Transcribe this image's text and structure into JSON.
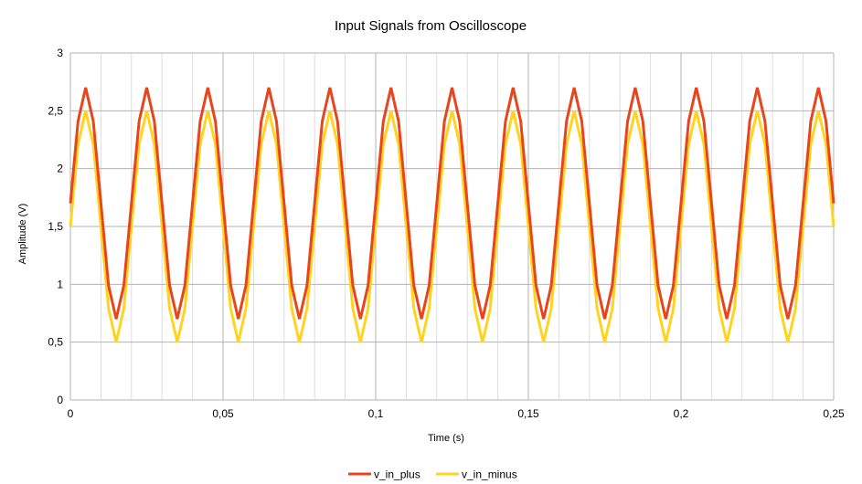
{
  "chart_data": {
    "type": "line",
    "title": "Input Signals from Oscilloscope",
    "xlabel": "Time (s)",
    "ylabel": "Amplitude (V)",
    "xlim": [
      0,
      0.25
    ],
    "ylim": [
      0,
      3
    ],
    "x_ticks": [
      0,
      0.05,
      0.1,
      0.15,
      0.2,
      0.25
    ],
    "x_tick_labels": [
      "0",
      "0,05",
      "0,1",
      "0,15",
      "0,2",
      "0,25"
    ],
    "y_ticks": [
      0,
      0.5,
      1,
      1.5,
      2,
      2.5,
      3
    ],
    "y_tick_labels": [
      "0",
      "0,5",
      "1",
      "1,5",
      "2",
      "2,5",
      "3"
    ],
    "grid": true,
    "legend_position": "bottom",
    "x": [
      0,
      0.0025,
      0.005,
      0.0075,
      0.01,
      0.0125,
      0.015,
      0.0175,
      0.02,
      0.0225,
      0.025,
      0.0275,
      0.03,
      0.0325,
      0.035,
      0.0375,
      0.04,
      0.0425,
      0.045,
      0.0475,
      0.05,
      0.0525,
      0.055,
      0.0575,
      0.06,
      0.0625,
      0.065,
      0.0675,
      0.07,
      0.0725,
      0.075,
      0.0775,
      0.08,
      0.0825,
      0.085,
      0.0875,
      0.09,
      0.0925,
      0.095,
      0.0975,
      0.1,
      0.1025,
      0.105,
      0.1075,
      0.11,
      0.1125,
      0.115,
      0.1175,
      0.12,
      0.1225,
      0.125,
      0.1275,
      0.13,
      0.1325,
      0.135,
      0.1375,
      0.14,
      0.1425,
      0.145,
      0.1475,
      0.15,
      0.1525,
      0.155,
      0.1575,
      0.16,
      0.1625,
      0.165,
      0.1675,
      0.17,
      0.1725,
      0.175,
      0.1775,
      0.18,
      0.1825,
      0.185,
      0.1875,
      0.19,
      0.1925,
      0.195,
      0.1975,
      0.2,
      0.2025,
      0.205,
      0.2075,
      0.21,
      0.2125,
      0.215,
      0.2175,
      0.22,
      0.2225,
      0.225,
      0.2275,
      0.23,
      0.2325,
      0.235,
      0.2375,
      0.24,
      0.2425,
      0.245,
      0.2475,
      0.25
    ],
    "series": [
      {
        "name": "v_in_plus",
        "color": "#e8451e",
        "values": [
          1.7,
          2.41,
          2.7,
          2.41,
          1.7,
          0.99,
          0.7,
          0.99,
          1.7,
          2.41,
          2.7,
          2.41,
          1.7,
          0.99,
          0.7,
          0.99,
          1.7,
          2.41,
          2.7,
          2.41,
          1.7,
          0.99,
          0.7,
          0.99,
          1.7,
          2.41,
          2.7,
          2.41,
          1.7,
          0.99,
          0.7,
          0.99,
          1.7,
          2.41,
          2.7,
          2.41,
          1.7,
          0.99,
          0.7,
          0.99,
          1.7,
          2.41,
          2.7,
          2.41,
          1.7,
          0.99,
          0.7,
          0.99,
          1.7,
          2.41,
          2.7,
          2.41,
          1.7,
          0.99,
          0.7,
          0.99,
          1.7,
          2.41,
          2.7,
          2.41,
          1.7,
          0.99,
          0.7,
          0.99,
          1.7,
          2.41,
          2.7,
          2.41,
          1.7,
          0.99,
          0.7,
          0.99,
          1.7,
          2.41,
          2.7,
          2.41,
          1.7,
          0.99,
          0.7,
          0.99,
          1.7,
          2.41,
          2.7,
          2.41,
          1.7,
          0.99,
          0.7,
          0.99,
          1.7,
          2.41,
          2.7,
          2.41,
          1.7,
          0.99,
          0.7,
          0.99,
          1.7,
          2.41,
          2.7,
          2.41,
          1.7
        ]
      },
      {
        "name": "v_in_minus",
        "color": "#ffd320",
        "values": [
          1.5,
          2.21,
          2.5,
          2.21,
          1.5,
          0.79,
          0.5,
          0.79,
          1.5,
          2.21,
          2.5,
          2.21,
          1.5,
          0.79,
          0.5,
          0.79,
          1.5,
          2.21,
          2.5,
          2.21,
          1.5,
          0.79,
          0.5,
          0.79,
          1.5,
          2.21,
          2.5,
          2.21,
          1.5,
          0.79,
          0.5,
          0.79,
          1.5,
          2.21,
          2.5,
          2.21,
          1.5,
          0.79,
          0.5,
          0.79,
          1.5,
          2.21,
          2.5,
          2.21,
          1.5,
          0.79,
          0.5,
          0.79,
          1.5,
          2.21,
          2.5,
          2.21,
          1.5,
          0.79,
          0.5,
          0.79,
          1.5,
          2.21,
          2.5,
          2.21,
          1.5,
          0.79,
          0.5,
          0.79,
          1.5,
          2.21,
          2.5,
          2.21,
          1.5,
          0.79,
          0.5,
          0.79,
          1.5,
          2.21,
          2.5,
          2.21,
          1.5,
          0.79,
          0.5,
          0.79,
          1.5,
          2.21,
          2.5,
          2.21,
          1.5,
          0.79,
          0.5,
          0.79,
          1.5,
          2.21,
          2.5,
          2.21,
          1.5,
          0.79,
          0.5,
          0.79,
          1.5,
          2.21,
          2.5,
          2.21,
          1.5
        ]
      }
    ]
  }
}
